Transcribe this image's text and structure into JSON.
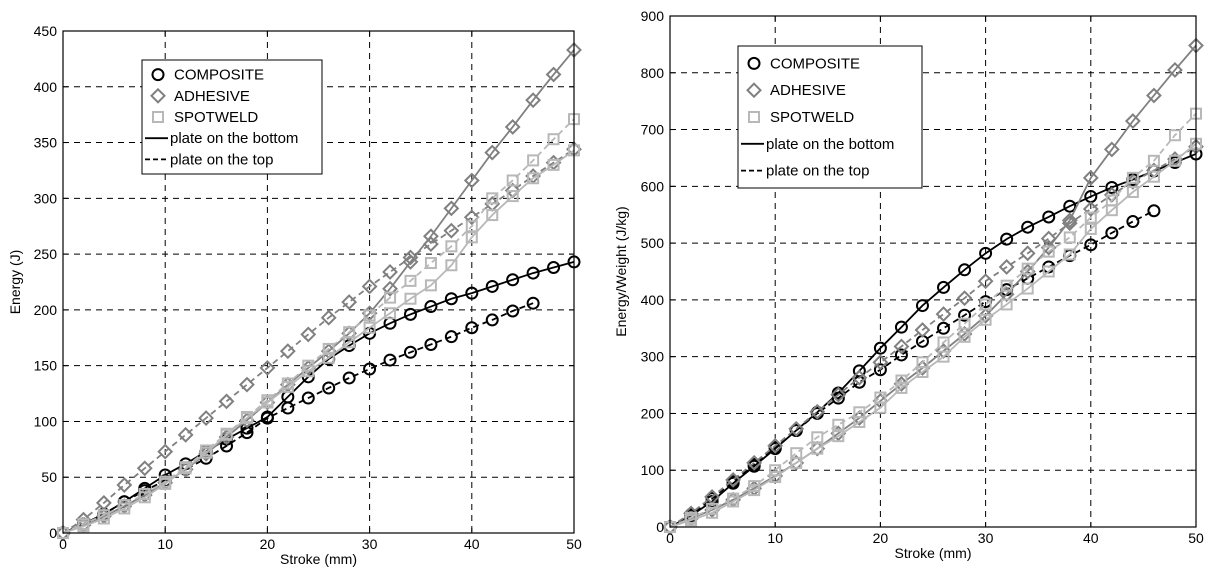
{
  "chart_data": [
    {
      "type": "line",
      "title": "",
      "xlabel": "Stroke (mm)",
      "ylabel": "Energy (J)",
      "xlim": [
        0,
        50
      ],
      "ylim": [
        0,
        450
      ],
      "xticks": [
        0,
        10,
        20,
        30,
        40,
        50
      ],
      "yticks": [
        0,
        50,
        100,
        150,
        200,
        250,
        300,
        350,
        400,
        450
      ],
      "grid": true,
      "legend_position": "top-left",
      "legend": {
        "markers": [
          {
            "label": "COMPOSITE",
            "marker": "circle",
            "color": "#000000"
          },
          {
            "label": "ADHESIVE",
            "marker": "diamond",
            "color": "#808080"
          },
          {
            "label": "SPOTWELD",
            "marker": "square",
            "color": "#b8b8b8"
          }
        ],
        "lines": [
          {
            "label": "plate on the bottom",
            "style": "solid"
          },
          {
            "label": "plate on the top",
            "style": "dashed"
          }
        ]
      },
      "series": [
        {
          "key": "composite-bottom",
          "marker": "circle",
          "color": "#000000",
          "dash": false,
          "x": [
            0,
            2,
            4,
            6,
            8,
            10,
            12,
            14,
            16,
            18,
            20,
            22,
            24,
            26,
            28,
            30,
            32,
            34,
            36,
            38,
            40,
            42,
            44,
            46,
            48,
            50
          ],
          "y": [
            0,
            8,
            17,
            28,
            40,
            52,
            62,
            73,
            84,
            94,
            104,
            122,
            140,
            156,
            168,
            179,
            188,
            196,
            203,
            210,
            215,
            221,
            227,
            233,
            238,
            243
          ]
        },
        {
          "key": "composite-top",
          "marker": "circle",
          "color": "#000000",
          "dash": true,
          "x": [
            0,
            2,
            4,
            6,
            8,
            10,
            12,
            14,
            16,
            18,
            20,
            22,
            24,
            26,
            28,
            30,
            32,
            34,
            36,
            38,
            40,
            42,
            44,
            46
          ],
          "y": [
            0,
            8,
            17,
            28,
            38,
            47,
            57,
            67,
            78,
            90,
            103,
            112,
            121,
            130,
            139,
            147,
            155,
            162,
            169,
            176,
            184,
            191,
            199,
            206
          ]
        },
        {
          "key": "adhesive-bottom",
          "marker": "diamond",
          "color": "#808080",
          "dash": false,
          "x": [
            0,
            2,
            4,
            6,
            8,
            10,
            12,
            14,
            16,
            18,
            20,
            22,
            24,
            26,
            28,
            30,
            32,
            34,
            36,
            38,
            40,
            42,
            44,
            46,
            48,
            50
          ],
          "y": [
            0,
            7,
            15,
            24,
            34,
            45,
            57,
            71,
            86,
            101,
            117,
            133,
            148,
            163,
            179,
            197,
            219,
            243,
            266,
            291,
            316,
            341,
            364,
            388,
            411,
            433
          ]
        },
        {
          "key": "adhesive-top",
          "marker": "diamond",
          "color": "#808080",
          "dash": true,
          "x": [
            0,
            2,
            4,
            6,
            8,
            10,
            12,
            14,
            16,
            18,
            20,
            22,
            24,
            26,
            28,
            30,
            32,
            34,
            36,
            38,
            40,
            42,
            44,
            46,
            48,
            50
          ],
          "y": [
            0,
            12,
            27,
            43,
            58,
            73,
            88,
            103,
            118,
            133,
            148,
            163,
            178,
            193,
            207,
            221,
            234,
            247,
            259,
            271,
            283,
            295,
            307,
            320,
            332,
            344
          ]
        },
        {
          "key": "spotweld-bottom",
          "marker": "square",
          "color": "#b8b8b8",
          "dash": false,
          "x": [
            0,
            2,
            4,
            6,
            8,
            10,
            12,
            14,
            16,
            18,
            20,
            22,
            24,
            26,
            28,
            30,
            32,
            34,
            36,
            38,
            40,
            42,
            44,
            46,
            48,
            50
          ],
          "y": [
            0,
            6,
            13,
            22,
            32,
            44,
            58,
            72,
            88,
            103,
            117,
            131,
            145,
            157,
            171,
            184,
            197,
            210,
            222,
            240,
            265,
            285,
            302,
            318,
            330,
            343
          ]
        },
        {
          "key": "spotweld-top",
          "marker": "square",
          "color": "#b8b8b8",
          "dash": true,
          "x": [
            0,
            2,
            4,
            6,
            8,
            10,
            12,
            14,
            16,
            18,
            20,
            22,
            24,
            26,
            28,
            30,
            32,
            34,
            36,
            38,
            40,
            42,
            44,
            46,
            48,
            50
          ],
          "y": [
            0,
            8,
            16,
            25,
            35,
            46,
            59,
            74,
            89,
            104,
            119,
            134,
            150,
            165,
            180,
            195,
            211,
            226,
            242,
            257,
            275,
            300,
            316,
            334,
            353,
            371
          ]
        }
      ]
    },
    {
      "type": "line",
      "title": "",
      "xlabel": "Stroke (mm)",
      "ylabel": "Energy/Weight (J/kg)",
      "xlim": [
        0,
        50
      ],
      "ylim": [
        0,
        900
      ],
      "xticks": [
        0,
        10,
        20,
        30,
        40,
        50
      ],
      "yticks": [
        0,
        100,
        200,
        300,
        400,
        500,
        600,
        700,
        800,
        900
      ],
      "grid": true,
      "legend_position": "top-left",
      "legend": {
        "markers": [
          {
            "label": "COMPOSITE",
            "marker": "circle",
            "color": "#000000"
          },
          {
            "label": "ADHESIVE",
            "marker": "diamond",
            "color": "#808080"
          },
          {
            "label": "SPOTWELD",
            "marker": "square",
            "color": "#b8b8b8"
          }
        ],
        "lines": [
          {
            "label": "plate on the bottom",
            "style": "solid"
          },
          {
            "label": "plate on the top",
            "style": "dashed"
          }
        ]
      },
      "series": [
        {
          "key": "composite-bottom",
          "marker": "circle",
          "color": "#000000",
          "dash": false,
          "x": [
            0,
            2,
            4,
            6,
            8,
            10,
            12,
            14,
            16,
            18,
            20,
            22,
            24,
            26,
            28,
            30,
            32,
            34,
            36,
            38,
            40,
            42,
            44,
            46,
            48,
            50
          ],
          "y": [
            0,
            20,
            45,
            77,
            107,
            138,
            170,
            202,
            236,
            275,
            315,
            352,
            390,
            422,
            453,
            482,
            507,
            528,
            546,
            565,
            582,
            598,
            612,
            627,
            642,
            657
          ]
        },
        {
          "key": "composite-top",
          "marker": "circle",
          "color": "#000000",
          "dash": true,
          "x": [
            0,
            2,
            4,
            6,
            8,
            10,
            12,
            14,
            16,
            18,
            20,
            22,
            24,
            26,
            28,
            30,
            32,
            34,
            36,
            38,
            40,
            42,
            44,
            46
          ],
          "y": [
            0,
            22,
            50,
            80,
            110,
            140,
            170,
            200,
            227,
            255,
            277,
            303,
            327,
            350,
            373,
            397,
            418,
            438,
            458,
            478,
            497,
            518,
            538,
            557
          ]
        },
        {
          "key": "adhesive-bottom",
          "marker": "diamond",
          "color": "#808080",
          "dash": false,
          "x": [
            0,
            2,
            4,
            6,
            8,
            10,
            12,
            14,
            16,
            18,
            20,
            22,
            24,
            26,
            28,
            30,
            32,
            34,
            36,
            38,
            40,
            42,
            44,
            46,
            48,
            50
          ],
          "y": [
            0,
            15,
            30,
            48,
            68,
            90,
            113,
            138,
            165,
            192,
            222,
            252,
            280,
            310,
            340,
            372,
            410,
            450,
            492,
            540,
            615,
            665,
            715,
            760,
            805,
            848
          ]
        },
        {
          "key": "adhesive-top",
          "marker": "diamond",
          "color": "#808080",
          "dash": true,
          "x": [
            0,
            2,
            4,
            6,
            8,
            10,
            12,
            14,
            16,
            18,
            20,
            22,
            24,
            26,
            28,
            30,
            32,
            34,
            36,
            38,
            40,
            42,
            44,
            46,
            48,
            50
          ],
          "y": [
            0,
            24,
            53,
            83,
            113,
            143,
            173,
            203,
            233,
            263,
            290,
            318,
            347,
            375,
            403,
            433,
            458,
            482,
            508,
            535,
            560,
            585,
            608,
            628,
            648,
            670
          ]
        },
        {
          "key": "spotweld-bottom",
          "marker": "square",
          "color": "#b8b8b8",
          "dash": false,
          "x": [
            0,
            2,
            4,
            6,
            8,
            10,
            12,
            14,
            16,
            18,
            20,
            22,
            24,
            26,
            28,
            30,
            32,
            34,
            36,
            38,
            40,
            42,
            44,
            46,
            48,
            50
          ],
          "y": [
            0,
            12,
            25,
            45,
            65,
            88,
            113,
            138,
            160,
            185,
            210,
            245,
            273,
            300,
            335,
            365,
            392,
            420,
            450,
            480,
            525,
            558,
            590,
            617,
            645,
            675
          ]
        },
        {
          "key": "spotweld-top",
          "marker": "square",
          "color": "#b8b8b8",
          "dash": true,
          "x": [
            0,
            2,
            4,
            6,
            8,
            10,
            12,
            14,
            16,
            18,
            20,
            22,
            24,
            26,
            28,
            30,
            32,
            34,
            36,
            38,
            40,
            42,
            44,
            46,
            48,
            50
          ],
          "y": [
            0,
            16,
            32,
            50,
            72,
            100,
            130,
            158,
            180,
            202,
            228,
            258,
            290,
            325,
            358,
            392,
            425,
            455,
            485,
            510,
            545,
            575,
            615,
            645,
            690,
            728
          ]
        }
      ]
    }
  ]
}
